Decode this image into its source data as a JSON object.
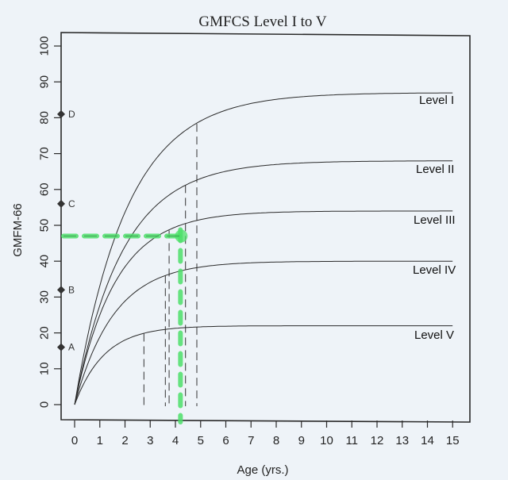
{
  "chart_data": {
    "type": "line",
    "title": "GMFCS Level I to V",
    "xlabel": "Age (yrs.)",
    "ylabel": "GMFM-66",
    "xlim": [
      0,
      15
    ],
    "ylim": [
      0,
      100
    ],
    "xticks": [
      0,
      1,
      2,
      3,
      4,
      5,
      6,
      7,
      8,
      9,
      10,
      11,
      12,
      13,
      14,
      15
    ],
    "yticks": [
      0,
      10,
      20,
      30,
      40,
      50,
      60,
      70,
      80,
      90,
      100
    ],
    "grid": false,
    "legend": "inline labels at right end of curves",
    "series": [
      {
        "name": "Level I",
        "limit": 87,
        "age90": 4.8,
        "x": [
          0,
          1,
          2,
          3,
          4,
          5,
          6,
          8,
          10,
          12,
          14,
          15
        ],
        "values": [
          0,
          32.7,
          52.4,
          64.5,
          71.8,
          76.4,
          79.1,
          82.0,
          83.3,
          84.5,
          86.2,
          86.8
        ]
      },
      {
        "name": "Level II",
        "limit": 68,
        "age90": 4.4,
        "x": [
          0,
          1,
          2,
          3,
          4,
          5,
          6,
          8,
          10,
          12,
          14,
          15
        ],
        "values": [
          0,
          27.2,
          43.8,
          53.3,
          59.3,
          62.5,
          64.8,
          66.5,
          67.3,
          67.6,
          67.8,
          67.9
        ]
      },
      {
        "name": "Level III",
        "limit": 54,
        "age90": 3.7,
        "x": [
          0,
          1,
          2,
          3,
          4,
          5,
          6,
          8,
          10,
          12,
          14,
          15
        ],
        "values": [
          0,
          24.6,
          38.7,
          45.9,
          49.7,
          51.7,
          52.8,
          53.7,
          53.9,
          54.0,
          54.0,
          54.0
        ]
      },
      {
        "name": "Level IV",
        "limit": 40,
        "age90": 3.6,
        "x": [
          0,
          1,
          2,
          3,
          4,
          5,
          6,
          8,
          10,
          12,
          14,
          15
        ],
        "values": [
          0,
          19.6,
          28.8,
          34.1,
          36.9,
          38.3,
          39.1,
          39.8,
          39.9,
          40.0,
          40.0,
          40.0
        ]
      },
      {
        "name": "Level V",
        "limit": 22,
        "age90": 2.7,
        "x": [
          0,
          1,
          2,
          3,
          4,
          5,
          6,
          8,
          10,
          12,
          14,
          15
        ],
        "values": [
          0,
          12.2,
          17.4,
          19.9,
          21.1,
          21.6,
          21.8,
          22.0,
          22.0,
          22.0,
          22.0,
          22.0
        ]
      }
    ],
    "age90_markers": [
      {
        "level": "Level V",
        "age": 2.75,
        "gmfm": 19.8
      },
      {
        "level": "Level IV",
        "age": 3.6,
        "gmfm": 36.0
      },
      {
        "level": "Level III",
        "age": 3.75,
        "gmfm": 48.6
      },
      {
        "level": "Level II",
        "age": 4.4,
        "gmfm": 61.2
      },
      {
        "level": "Level I",
        "age": 4.85,
        "gmfm": 78.3
      }
    ],
    "y_axis_markers": [
      {
        "label": "A",
        "value": 16
      },
      {
        "label": "B",
        "value": 32
      },
      {
        "label": "C",
        "value": 56
      },
      {
        "label": "D",
        "value": 81
      }
    ],
    "annotation": {
      "type": "green dashed highlight",
      "age": 4.2,
      "gmfm": 47,
      "color": "#4ee06a"
    }
  },
  "labels": {
    "title": "GMFCS Level I to V",
    "xlabel": "Age (yrs.)",
    "ylabel": "GMFM-66"
  },
  "colors": {
    "background": "#eef3f8",
    "line": "#2a2a2a",
    "highlight": "#4ee06a"
  }
}
